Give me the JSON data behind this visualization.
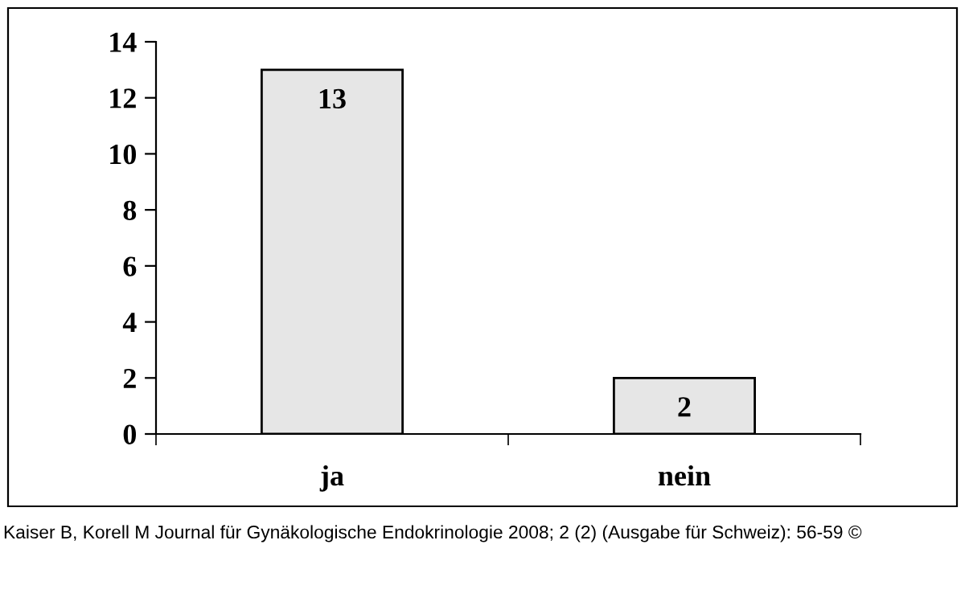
{
  "chart_data": {
    "type": "bar",
    "categories": [
      "ja",
      "nein"
    ],
    "values": [
      13,
      2
    ],
    "color": "#e6e6e6",
    "data_labels": true,
    "ylim": [
      0,
      14
    ],
    "yticks": [
      0,
      2,
      4,
      6,
      8,
      10,
      12,
      14
    ],
    "grid": false,
    "legend": false,
    "annotations": [
      "Kaiser B, Korell M Journal für Gynäkologische Endokrinologie 2008; 2 (2) (Ausgabe für Schweiz): 56-59 ©"
    ]
  }
}
